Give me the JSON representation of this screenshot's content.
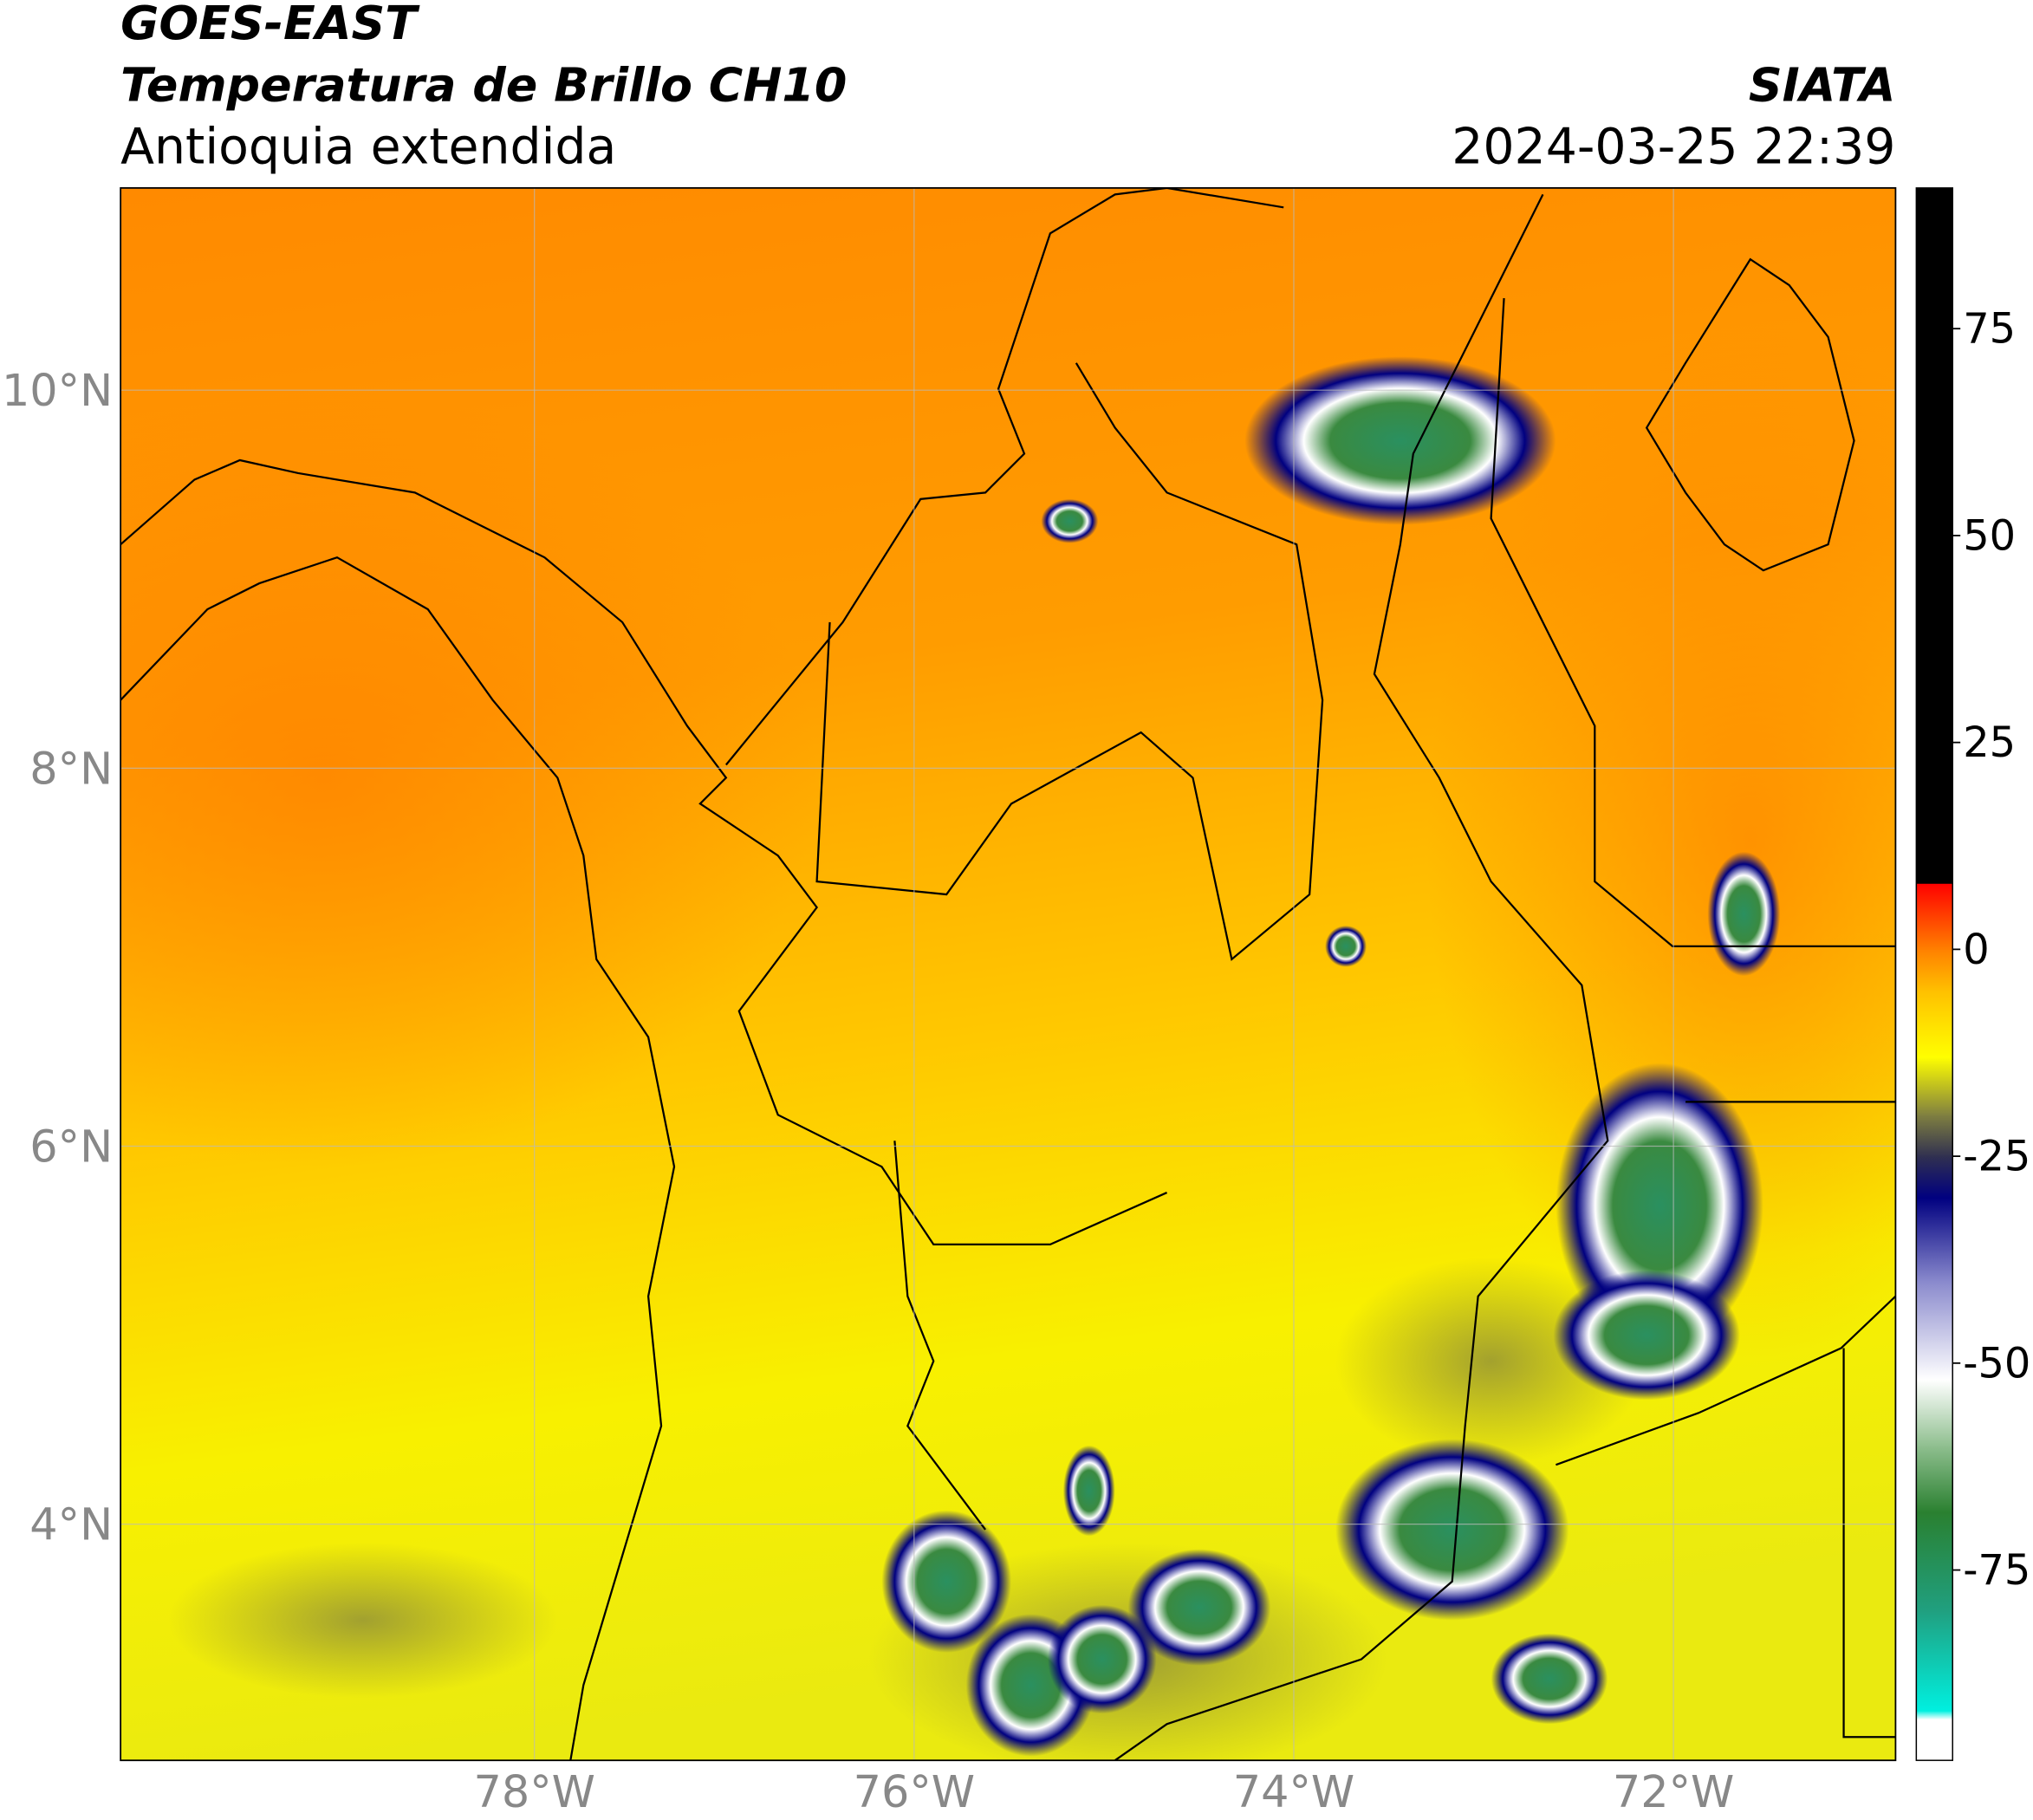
{
  "header": {
    "title": "GOES-EAST",
    "subtitle": "Temperatura de Brillo CH10",
    "region": "Antioquia extendida",
    "source": "SIATA",
    "datetime": "2024-03-25 22:39"
  },
  "map": {
    "lonlim": [
      -80.18,
      -70.83
    ],
    "latlim": [
      2.75,
      11.07
    ],
    "lonticks": [
      {
        "value": -78,
        "label": "78°W"
      },
      {
        "value": -76,
        "label": "76°W"
      },
      {
        "value": -74,
        "label": "74°W"
      },
      {
        "value": -72,
        "label": "72°W"
      }
    ],
    "latticks": [
      {
        "value": 10,
        "label": "10°N"
      },
      {
        "value": 8,
        "label": "8°N"
      },
      {
        "value": 6,
        "label": "6°N"
      },
      {
        "value": 4,
        "label": "4°N"
      }
    ]
  },
  "colorbar": {
    "lim": [
      -98,
      92
    ],
    "ticks": [
      75,
      50,
      25,
      0,
      -25,
      -50,
      -75
    ],
    "stops": [
      {
        "value": -98,
        "color": "#ffffff"
      },
      {
        "value": -93,
        "color": "#ffffff"
      },
      {
        "value": -92,
        "color": "#00f0e0"
      },
      {
        "value": -80,
        "color": "#20a080"
      },
      {
        "value": -68,
        "color": "#2a8030"
      },
      {
        "value": -60,
        "color": "#8fbf8f"
      },
      {
        "value": -52,
        "color": "#ffffff"
      },
      {
        "value": -40,
        "color": "#8888cc"
      },
      {
        "value": -30,
        "color": "#000080"
      },
      {
        "value": -25,
        "color": "#303050"
      },
      {
        "value": -20,
        "color": "#808040"
      },
      {
        "value": -13,
        "color": "#ffff00"
      },
      {
        "value": -5,
        "color": "#ffc000"
      },
      {
        "value": 0,
        "color": "#ff8000"
      },
      {
        "value": 8,
        "color": "#ff0000"
      },
      {
        "value": 8,
        "color": "#000000"
      },
      {
        "value": 92,
        "color": "#000000"
      }
    ]
  }
}
